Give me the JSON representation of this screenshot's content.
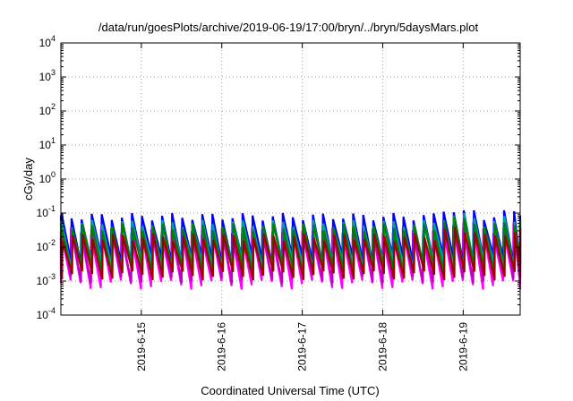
{
  "chart_data": {
    "type": "line",
    "title": "/data/run/goesPlots/archive/2019-06-19/17:00/bryn/../bryn/5daysMars.plot",
    "xlabel": "Coordinated Universal Time (UTC)",
    "ylabel": "cGy/day",
    "yscale": "log",
    "ylim": [
      0.0001,
      10000
    ],
    "yticks": [
      {
        "base": "10",
        "exp": "-4",
        "value": 0.0001
      },
      {
        "base": "10",
        "exp": "-3",
        "value": 0.001
      },
      {
        "base": "10",
        "exp": "-2",
        "value": 0.01
      },
      {
        "base": "10",
        "exp": "-1",
        "value": 0.1
      },
      {
        "base": "10",
        "exp": "0",
        "value": 1
      },
      {
        "base": "10",
        "exp": "1",
        "value": 10
      },
      {
        "base": "10",
        "exp": "2",
        "value": 100
      },
      {
        "base": "10",
        "exp": "3",
        "value": 1000
      },
      {
        "base": "10",
        "exp": "4",
        "value": 10000
      }
    ],
    "xlim": [
      "2019-06-14 00:00",
      "2019-06-19 17:00"
    ],
    "xticks": [
      {
        "label": "2019-6-15",
        "value": "2019-06-15 00:00"
      },
      {
        "label": "2019-6-16",
        "value": "2019-06-16 00:00"
      },
      {
        "label": "2019-6-17",
        "value": "2019-06-17 00:00"
      },
      {
        "label": "2019-6-18",
        "value": "2019-06-18 00:00"
      },
      {
        "label": "2019-6-19",
        "value": "2019-06-19 00:00"
      }
    ],
    "grid": true,
    "sawtooth_period_hours": 3,
    "series": [
      {
        "color": "#ff00ff",
        "peak": 0.03,
        "trough": 0.0008
      },
      {
        "color": "#c000c0",
        "peak": 0.035,
        "trough": 0.0012
      },
      {
        "color": "#0000ff",
        "peak": 0.08,
        "trough": 0.004
      },
      {
        "color": "#00a0a0",
        "peak": 0.05,
        "trough": 0.003
      },
      {
        "color": "#008000",
        "peak": 0.04,
        "trough": 0.002
      },
      {
        "color": "#a00000",
        "peak": 0.02,
        "trough": 0.0015
      }
    ]
  }
}
